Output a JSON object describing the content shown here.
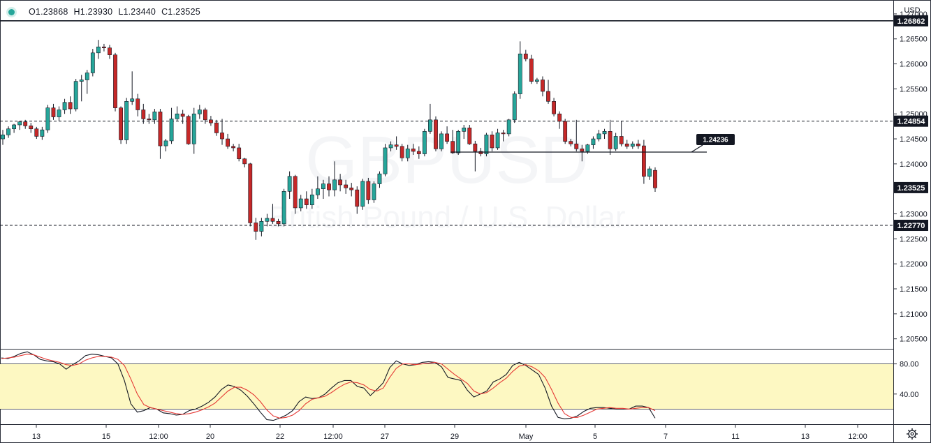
{
  "legend": {
    "open": "O1.23868",
    "high": "H1.23930",
    "low": "L1.23440",
    "close": "C1.23525"
  },
  "currency": "USD",
  "watermark": {
    "symbol": "GBPUSD",
    "name": "British Pound / U.S. Dollar"
  },
  "gear_icon": "gear-icon",
  "colors": {
    "up": "#26a69a",
    "down": "#c62828",
    "stoch_k": "#131722",
    "stoch_d": "#e53935",
    "stoch_band": "#fdf8c2"
  },
  "chart_data": [
    {
      "type": "candlestick",
      "title": "",
      "y_axis_ticks": [
        "1.27000",
        "1.26500",
        "1.26000",
        "1.25500",
        "1.25000",
        "1.24500",
        "1.24000",
        "1.23500",
        "1.23000",
        "1.22500",
        "1.22000",
        "1.21500",
        "1.21000",
        "1.20500"
      ],
      "ylim": [
        1.203,
        1.2725
      ],
      "x_axis_ticks": [
        "13",
        "15",
        "12:00",
        "20",
        "22",
        "12:00",
        "27",
        "29",
        "May",
        "5",
        "7",
        "11",
        "13",
        "12:00"
      ],
      "price_labels": [
        {
          "label": "1.26862",
          "value": 1.26862,
          "style": "dark"
        },
        {
          "label": "1.24854",
          "value": 1.24854,
          "style": "dark"
        },
        {
          "label": "1.23525",
          "value": 1.23525,
          "style": "dark"
        },
        {
          "label": "1.22770",
          "value": 1.2277,
          "style": "dark"
        }
      ],
      "horizontal_lines": [
        {
          "value": 1.26862,
          "style": "solid"
        },
        {
          "value": 1.24854,
          "style": "dashed"
        },
        {
          "value": 1.2277,
          "style": "dashed"
        }
      ],
      "ray": {
        "value": 1.24236,
        "label": "1.24236"
      },
      "candles": [
        [
          1.245,
          1.2468,
          1.2438,
          1.2458
        ],
        [
          1.2458,
          1.2475,
          1.2452,
          1.247
        ],
        [
          1.247,
          1.248,
          1.2462,
          1.2478
        ],
        [
          1.2478,
          1.2486,
          1.2468,
          1.2484
        ],
        [
          1.2484,
          1.2488,
          1.247,
          1.2476
        ],
        [
          1.2476,
          1.2482,
          1.2462,
          1.247
        ],
        [
          1.247,
          1.2474,
          1.245,
          1.2455
        ],
        [
          1.2455,
          1.2474,
          1.2448,
          1.2468
        ],
        [
          1.2468,
          1.2518,
          1.2462,
          1.2512
        ],
        [
          1.2512,
          1.252,
          1.2488,
          1.2494
        ],
        [
          1.2494,
          1.2515,
          1.2485,
          1.2508
        ],
        [
          1.2508,
          1.253,
          1.25,
          1.2523
        ],
        [
          1.2523,
          1.2535,
          1.25,
          1.251
        ],
        [
          1.251,
          1.257,
          1.2505,
          1.2565
        ],
        [
          1.2565,
          1.2578,
          1.2525,
          1.2568
        ],
        [
          1.2568,
          1.2588,
          1.254,
          1.2582
        ],
        [
          1.2582,
          1.263,
          1.2575,
          1.2622
        ],
        [
          1.2622,
          1.2648,
          1.261,
          1.2634
        ],
        [
          1.2634,
          1.264,
          1.2625,
          1.2632
        ],
        [
          1.2632,
          1.2638,
          1.261,
          1.2618
        ],
        [
          1.2618,
          1.2622,
          1.2505,
          1.2512
        ],
        [
          1.2512,
          1.2515,
          1.244,
          1.2448
        ],
        [
          1.2448,
          1.2532,
          1.244,
          1.2525
        ],
        [
          1.2525,
          1.2585,
          1.2518,
          1.253
        ],
        [
          1.253,
          1.254,
          1.2495,
          1.2508
        ],
        [
          1.2508,
          1.252,
          1.248,
          1.249
        ],
        [
          1.249,
          1.25,
          1.248,
          1.2488
        ],
        [
          1.2488,
          1.251,
          1.248,
          1.2504
        ],
        [
          1.2504,
          1.251,
          1.241,
          1.2436
        ],
        [
          1.2436,
          1.245,
          1.2425,
          1.2446
        ],
        [
          1.2446,
          1.2512,
          1.244,
          1.249
        ],
        [
          1.249,
          1.2515,
          1.2485,
          1.25
        ],
        [
          1.25,
          1.2508,
          1.248,
          1.2495
        ],
        [
          1.2495,
          1.2498,
          1.2438,
          1.244
        ],
        [
          1.244,
          1.2512,
          1.242,
          1.25
        ],
        [
          1.25,
          1.2518,
          1.249,
          1.2508
        ],
        [
          1.2508,
          1.2512,
          1.248,
          1.2488
        ],
        [
          1.2488,
          1.2496,
          1.2476,
          1.2482
        ],
        [
          1.2482,
          1.2488,
          1.2456,
          1.2462
        ],
        [
          1.2462,
          1.249,
          1.2438,
          1.245
        ],
        [
          1.245,
          1.246,
          1.243,
          1.2435
        ],
        [
          1.2435,
          1.244,
          1.2425,
          1.2432
        ],
        [
          1.2432,
          1.244,
          1.2405,
          1.241
        ],
        [
          1.241,
          1.2412,
          1.2393,
          1.24
        ],
        [
          1.24,
          1.2402,
          1.2275,
          1.2282
        ],
        [
          1.2282,
          1.2292,
          1.2248,
          1.2265
        ],
        [
          1.2265,
          1.2292,
          1.2255,
          1.2285
        ],
        [
          1.2285,
          1.23,
          1.2275,
          1.2291
        ],
        [
          1.2291,
          1.232,
          1.228,
          1.2285
        ],
        [
          1.2285,
          1.229,
          1.2275,
          1.228
        ],
        [
          1.228,
          1.235,
          1.2275,
          1.2345
        ],
        [
          1.2345,
          1.2385,
          1.233,
          1.2375
        ],
        [
          1.2375,
          1.2378,
          1.23,
          1.2312
        ],
        [
          1.2312,
          1.2338,
          1.2305,
          1.233
        ],
        [
          1.233,
          1.2345,
          1.231,
          1.2318
        ],
        [
          1.2318,
          1.235,
          1.231,
          1.2338
        ],
        [
          1.2338,
          1.2375,
          1.233,
          1.235
        ],
        [
          1.235,
          1.2368,
          1.233,
          1.236
        ],
        [
          1.236,
          1.2375,
          1.2335,
          1.2348
        ],
        [
          1.2348,
          1.2405,
          1.2335,
          1.2368
        ],
        [
          1.2368,
          1.238,
          1.2345,
          1.2358
        ],
        [
          1.2358,
          1.2368,
          1.234,
          1.2352
        ],
        [
          1.2352,
          1.2362,
          1.2335,
          1.2348
        ],
        [
          1.2348,
          1.2355,
          1.23,
          1.2315
        ],
        [
          1.2315,
          1.237,
          1.2308,
          1.2365
        ],
        [
          1.2365,
          1.2372,
          1.232,
          1.2328
        ],
        [
          1.2328,
          1.2365,
          1.2322,
          1.236
        ],
        [
          1.236,
          1.2385,
          1.2352,
          1.238
        ],
        [
          1.238,
          1.244,
          1.2375,
          1.2432
        ],
        [
          1.2432,
          1.2445,
          1.2425,
          1.2438
        ],
        [
          1.2438,
          1.2455,
          1.2428,
          1.2435
        ],
        [
          1.2435,
          1.244,
          1.2405,
          1.2412
        ],
        [
          1.2412,
          1.2438,
          1.2405,
          1.243
        ],
        [
          1.243,
          1.244,
          1.2418,
          1.2425
        ],
        [
          1.2425,
          1.2435,
          1.241,
          1.242
        ],
        [
          1.242,
          1.247,
          1.2415,
          1.2465
        ],
        [
          1.2465,
          1.252,
          1.246,
          1.2488
        ],
        [
          1.2488,
          1.2495,
          1.2425,
          1.243
        ],
        [
          1.243,
          1.2465,
          1.2425,
          1.246
        ],
        [
          1.246,
          1.2475,
          1.244,
          1.2445
        ],
        [
          1.2445,
          1.2468,
          1.242,
          1.2422
        ],
        [
          1.2422,
          1.2468,
          1.2418,
          1.2465
        ],
        [
          1.2465,
          1.2478,
          1.245,
          1.2472
        ],
        [
          1.2472,
          1.2478,
          1.2438,
          1.244
        ],
        [
          1.244,
          1.2446,
          1.2385,
          1.2425
        ],
        [
          1.2425,
          1.2432,
          1.2415,
          1.242
        ],
        [
          1.242,
          1.2462,
          1.2415,
          1.2458
        ],
        [
          1.2458,
          1.2465,
          1.2425,
          1.2432
        ],
        [
          1.2432,
          1.247,
          1.2428,
          1.2462
        ],
        [
          1.2462,
          1.2468,
          1.2445,
          1.246
        ],
        [
          1.246,
          1.249,
          1.2455,
          1.2488
        ],
        [
          1.2488,
          1.2545,
          1.2482,
          1.254
        ],
        [
          1.254,
          1.2645,
          1.253,
          1.262
        ],
        [
          1.262,
          1.2628,
          1.2605,
          1.261
        ],
        [
          1.261,
          1.2618,
          1.256,
          1.2565
        ],
        [
          1.2565,
          1.2572,
          1.256,
          1.2568
        ],
        [
          1.2568,
          1.2575,
          1.2535,
          1.2545
        ],
        [
          1.2545,
          1.2568,
          1.252,
          1.2525
        ],
        [
          1.2525,
          1.2532,
          1.2495,
          1.25
        ],
        [
          1.25,
          1.2505,
          1.247,
          1.2485
        ],
        [
          1.2485,
          1.249,
          1.244,
          1.2445
        ],
        [
          1.2445,
          1.245,
          1.2435,
          1.244
        ],
        [
          1.244,
          1.2488,
          1.2425,
          1.243
        ],
        [
          1.243,
          1.2438,
          1.2405,
          1.2425
        ],
        [
          1.2425,
          1.244,
          1.242,
          1.2438
        ],
        [
          1.2438,
          1.2455,
          1.243,
          1.245
        ],
        [
          1.245,
          1.2468,
          1.2445,
          1.246
        ],
        [
          1.246,
          1.247,
          1.245,
          1.2465
        ],
        [
          1.2465,
          1.2488,
          1.2418,
          1.243
        ],
        [
          1.243,
          1.2462,
          1.2426,
          1.2455
        ],
        [
          1.2455,
          1.2485,
          1.2435,
          1.244
        ],
        [
          1.244,
          1.2448,
          1.243,
          1.2435
        ],
        [
          1.2435,
          1.2445,
          1.243,
          1.244
        ],
        [
          1.244,
          1.2448,
          1.243,
          1.2436
        ],
        [
          1.2436,
          1.2448,
          1.236,
          1.2375
        ],
        [
          1.2375,
          1.2395,
          1.2368,
          1.239
        ],
        [
          1.2387,
          1.2393,
          1.2344,
          1.2352
        ]
      ]
    },
    {
      "type": "line",
      "title": "",
      "y_axis_ticks": [
        "80.00",
        "40.00"
      ],
      "ylim": [
        0,
        100
      ],
      "band": [
        20,
        80
      ],
      "series": [
        {
          "values": [
            88,
            87,
            90,
            94,
            96,
            92,
            86,
            84,
            83,
            80,
            73,
            79,
            84,
            91,
            93,
            92,
            90,
            88,
            80,
            58,
            27,
            16,
            18,
            22,
            20,
            15,
            14,
            12,
            13,
            18,
            20,
            24,
            29,
            36,
            46,
            52,
            50,
            45,
            37,
            27,
            16,
            6,
            5,
            8,
            12,
            18,
            30,
            36,
            34,
            35,
            40,
            48,
            55,
            58,
            58,
            50,
            48,
            38,
            46,
            55,
            75,
            84,
            80,
            78,
            79,
            82,
            83,
            82,
            76,
            62,
            60,
            58,
            45,
            36,
            40,
            44,
            56,
            60,
            66,
            78,
            82,
            78,
            72,
            66,
            48,
            24,
            9,
            7,
            8,
            11,
            17,
            21,
            22,
            22,
            21,
            20,
            20,
            20,
            24,
            24,
            22,
            8
          ]
        },
        {
          "values": [
            87,
            88,
            89,
            91,
            93,
            92,
            89,
            86,
            84,
            82,
            79,
            78,
            80,
            85,
            88,
            90,
            90,
            89,
            86,
            78,
            60,
            40,
            26,
            22,
            20,
            18,
            16,
            14,
            13,
            14,
            16,
            19,
            23,
            28,
            36,
            44,
            49,
            49,
            45,
            39,
            30,
            19,
            11,
            8,
            9,
            12,
            18,
            27,
            33,
            35,
            37,
            42,
            48,
            53,
            56,
            55,
            52,
            46,
            44,
            48,
            62,
            74,
            80,
            80,
            79,
            80,
            81,
            82,
            80,
            73,
            66,
            60,
            54,
            44,
            40,
            42,
            48,
            55,
            61,
            70,
            77,
            79,
            76,
            71,
            62,
            46,
            28,
            14,
            9,
            9,
            12,
            16,
            20,
            21,
            22,
            21,
            21,
            20,
            21,
            22,
            22,
            18
          ]
        }
      ]
    }
  ]
}
